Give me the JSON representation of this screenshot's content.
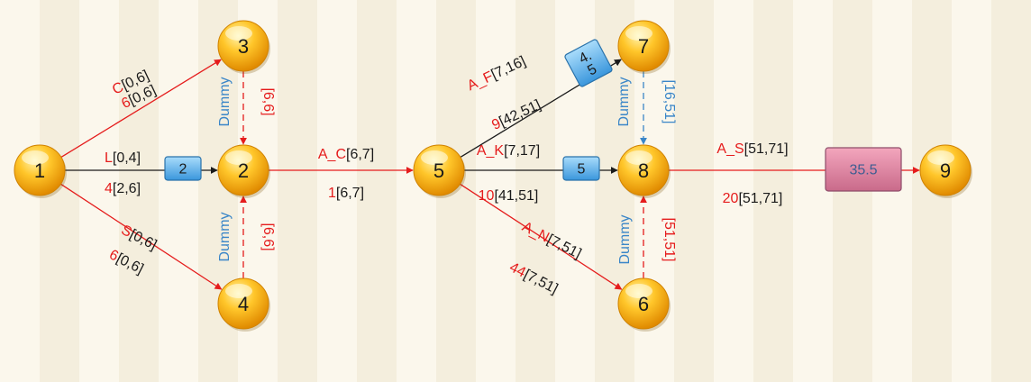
{
  "colors": {
    "red": "#e51c1c",
    "black": "#1a1a1a",
    "blue": "#3a86c8"
  },
  "nodes": [
    {
      "id": "1",
      "label": "1"
    },
    {
      "id": "2",
      "label": "2"
    },
    {
      "id": "3",
      "label": "3"
    },
    {
      "id": "4",
      "label": "4"
    },
    {
      "id": "5",
      "label": "5"
    },
    {
      "id": "6",
      "label": "6"
    },
    {
      "id": "7",
      "label": "7"
    },
    {
      "id": "8",
      "label": "8"
    },
    {
      "id": "9",
      "label": "9"
    }
  ],
  "edges": [
    {
      "id": "1-3",
      "from": "1",
      "to": "3",
      "style": "solid-red",
      "top": {
        "name": "C",
        "interval": "[0,6]"
      },
      "bottom": {
        "duration": "6",
        "interval": "[0,6]"
      }
    },
    {
      "id": "1-2",
      "from": "1",
      "to": "2",
      "style": "solid-black",
      "top": {
        "name": "L",
        "interval": "[0,4]"
      },
      "bottom": {
        "duration": "4",
        "interval": "[2,6]"
      },
      "box": "2"
    },
    {
      "id": "1-4",
      "from": "1",
      "to": "4",
      "style": "solid-red",
      "top": {
        "name": "S",
        "interval": "[0,6]"
      },
      "bottom": {
        "duration": "6",
        "interval": "[0,6]"
      }
    },
    {
      "id": "3-2",
      "from": "3",
      "to": "2",
      "style": "dashed-red",
      "dummy": "Dummy",
      "interval": "[6,6]"
    },
    {
      "id": "4-2",
      "from": "4",
      "to": "2",
      "style": "dashed-red",
      "dummy": "Dummy",
      "interval": "[6,6]"
    },
    {
      "id": "2-5",
      "from": "2",
      "to": "5",
      "style": "solid-red",
      "top": {
        "name": "A_C",
        "interval": "[6,7]"
      },
      "bottom": {
        "duration": "1",
        "interval": "[6,7]"
      }
    },
    {
      "id": "5-7",
      "from": "5",
      "to": "7",
      "style": "solid-black",
      "top": {
        "name": "A_F",
        "interval": "[7,16]"
      },
      "bottom": {
        "duration": "9",
        "interval": "[42,51]"
      },
      "box": "4.\n5"
    },
    {
      "id": "5-8",
      "from": "5",
      "to": "8",
      "style": "solid-black",
      "top": {
        "name": "A_K",
        "interval": "[7,17]"
      },
      "bottom": {
        "duration": "10",
        "interval": "[41,51]"
      },
      "box": "5"
    },
    {
      "id": "5-6",
      "from": "5",
      "to": "6",
      "style": "solid-red",
      "top": {
        "name": "A_N",
        "interval": "[7,51]"
      },
      "bottom": {
        "duration": "44",
        "interval": "[7,51]"
      }
    },
    {
      "id": "7-8",
      "from": "7",
      "to": "8",
      "style": "dashed-blue",
      "dummy": "Dummy",
      "interval": "[16,51]"
    },
    {
      "id": "6-8",
      "from": "6",
      "to": "8",
      "style": "dashed-red",
      "dummy": "Dummy",
      "interval": "[51,51]"
    },
    {
      "id": "8-9",
      "from": "8",
      "to": "9",
      "style": "solid-red",
      "top": {
        "name": "A_S",
        "interval": "[51,71]"
      },
      "bottom": {
        "duration": "20",
        "interval": "[51,71]"
      },
      "box": "35.5"
    }
  ]
}
